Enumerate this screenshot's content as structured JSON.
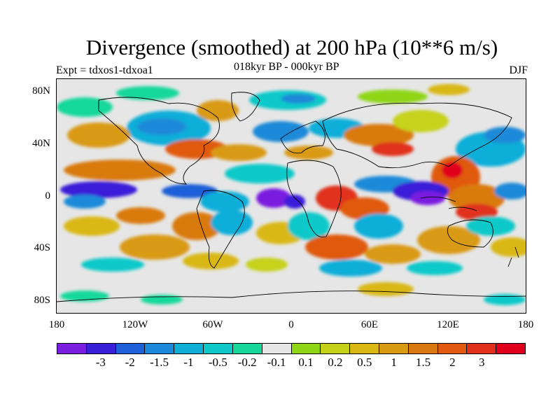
{
  "title": "Divergence (smoothed) at 200 hPa (10**6 m/s)",
  "subtitle_left": "Expt = tdxos1-tdxoa1",
  "subtitle_center": "018kyr BP - 000kyr BP",
  "subtitle_right": "DJF",
  "y_labels": [
    "80N",
    "40N",
    "0",
    "40S",
    "80S"
  ],
  "x_labels": [
    "180",
    "120W",
    "60W",
    "0",
    "60E",
    "120E",
    "180"
  ],
  "colorbar": {
    "colors": [
      "#7a1fe0",
      "#3a1fd8",
      "#1f5fd8",
      "#1c8ad8",
      "#11aed8",
      "#0fc9c9",
      "#17d89a",
      "#e6e6e6",
      "#8fd617",
      "#c6d21a",
      "#d9b814",
      "#d99a14",
      "#d97a10",
      "#e05a10",
      "#e0301c",
      "#e0001c"
    ],
    "labels": [
      "-3",
      "-2",
      "-1.5",
      "-1",
      "-0.5",
      "-0.2",
      "-0.1",
      "0.1",
      "0.2",
      "0.5",
      "1",
      "1.5",
      "2",
      "3"
    ]
  }
}
